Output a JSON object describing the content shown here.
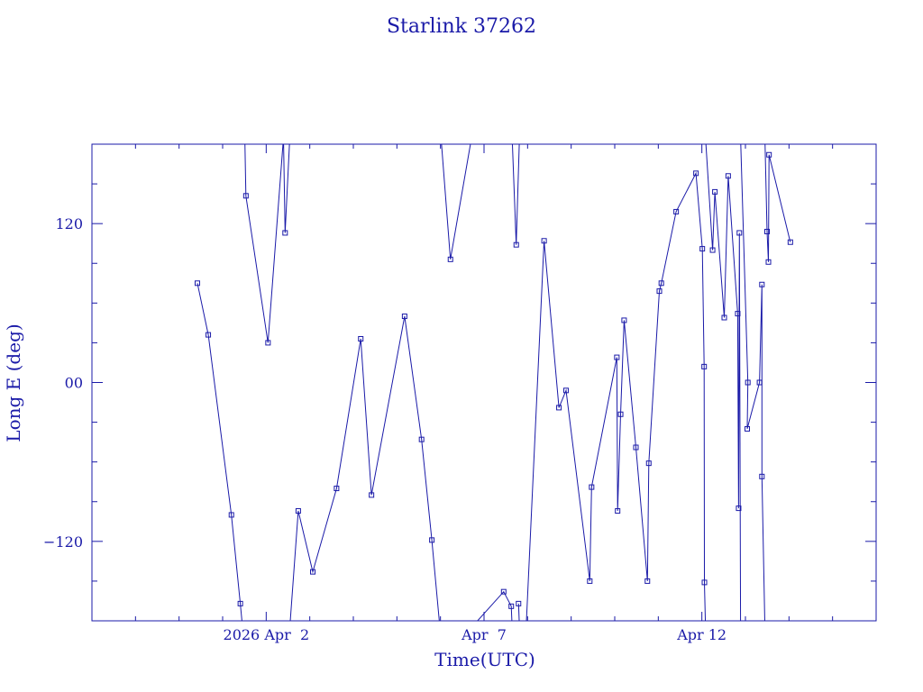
{
  "chart_data": {
    "type": "line",
    "title": "Starlink 37262",
    "xlabel": "Time(UTC)",
    "ylabel": "Long E (deg)",
    "xlim": [
      "2026-03-29T00:00",
      "2026-04-16T00:00"
    ],
    "ylim": [
      -180,
      180
    ],
    "x_ticks": [
      {
        "t": "2026-04-02T00:00",
        "label": "2026 Apr  2"
      },
      {
        "t": "2026-04-07T00:00",
        "label": "Apr  7"
      },
      {
        "t": "2026-04-12T00:00",
        "label": "Apr 12"
      }
    ],
    "y_ticks": [
      {
        "v": 120,
        "label": "120"
      },
      {
        "v": 0,
        "label": "00"
      },
      {
        "v": -120,
        "label": "−120"
      }
    ],
    "grid": false,
    "marker": "square",
    "color": "#1a1aa8",
    "series": [
      {
        "name": "",
        "points": [
          {
            "t": "2026-03-31T10:05",
            "lon": 75
          },
          {
            "t": "2026-03-31T16:05",
            "lon": 36
          },
          {
            "t": "2026-04-01T04:50",
            "lon": -100
          },
          {
            "t": "2026-04-01T09:45",
            "lon": -167
          },
          {
            "t": "2026-04-01T12:00",
            "lon": -200
          },
          {
            "t": "2026-04-01T12:00",
            "lon": 200
          },
          {
            "t": "2026-04-01T12:50",
            "lon": 141
          },
          {
            "t": "2026-04-02T01:00",
            "lon": 30
          },
          {
            "t": "2026-04-02T09:30",
            "lon": 185
          },
          {
            "t": "2026-04-02T10:25",
            "lon": 113
          },
          {
            "t": "2026-04-02T13:00",
            "lon": 185
          },
          {
            "t": "2026-04-02T13:00",
            "lon": -185
          },
          {
            "t": "2026-04-02T17:40",
            "lon": -97
          },
          {
            "t": "2026-04-03T01:40",
            "lon": -143
          },
          {
            "t": "2026-04-03T14:45",
            "lon": -80
          },
          {
            "t": "2026-04-04T04:05",
            "lon": 33
          },
          {
            "t": "2026-04-04T10:00",
            "lon": -85
          },
          {
            "t": "2026-04-05T04:15",
            "lon": 50
          },
          {
            "t": "2026-04-05T13:35",
            "lon": -43
          },
          {
            "t": "2026-04-05T19:15",
            "lon": -119
          },
          {
            "t": "2026-04-06T00:00",
            "lon": -190
          },
          {
            "t": "2026-04-06T00:00",
            "lon": 190
          },
          {
            "t": "2026-04-06T05:30",
            "lon": 93
          },
          {
            "t": "2026-04-06T17:10",
            "lon": 185
          },
          {
            "t": "2026-04-06T17:10",
            "lon": -185
          },
          {
            "t": "2026-04-07T10:50",
            "lon": -158
          },
          {
            "t": "2026-04-07T15:00",
            "lon": -169
          },
          {
            "t": "2026-04-07T15:30",
            "lon": -185
          },
          {
            "t": "2026-04-07T15:30",
            "lon": 185
          },
          {
            "t": "2026-04-07T17:45",
            "lon": 104
          },
          {
            "t": "2026-04-07T19:30",
            "lon": 185
          },
          {
            "t": "2026-04-07T19:30",
            "lon": -185
          },
          {
            "t": "2026-04-07T19:00",
            "lon": -167
          },
          {
            "t": "2026-04-07T23:10",
            "lon": 185
          },
          {
            "t": "2026-04-07T23:10",
            "lon": -185
          },
          {
            "t": "2026-04-08T09:05",
            "lon": 107
          },
          {
            "t": "2026-04-08T17:15",
            "lon": -19
          },
          {
            "t": "2026-04-08T21:10",
            "lon": -6
          },
          {
            "t": "2026-04-09T10:15",
            "lon": -150
          },
          {
            "t": "2026-04-09T11:15",
            "lon": -79
          },
          {
            "t": "2026-04-10T01:10",
            "lon": 19
          },
          {
            "t": "2026-04-10T01:35",
            "lon": -97
          },
          {
            "t": "2026-04-10T03:15",
            "lon": -24
          },
          {
            "t": "2026-04-10T05:10",
            "lon": 47
          },
          {
            "t": "2026-04-10T11:40",
            "lon": -49
          },
          {
            "t": "2026-04-10T18:00",
            "lon": -150
          },
          {
            "t": "2026-04-10T18:45",
            "lon": -61
          },
          {
            "t": "2026-04-11T00:35",
            "lon": 69
          },
          {
            "t": "2026-04-11T01:40",
            "lon": 75
          },
          {
            "t": "2026-04-11T09:50",
            "lon": 129
          },
          {
            "t": "2026-04-11T20:45",
            "lon": 158
          },
          {
            "t": "2026-04-12T00:15",
            "lon": 101
          },
          {
            "t": "2026-04-12T01:15",
            "lon": 12
          },
          {
            "t": "2026-04-12T01:25",
            "lon": -151
          },
          {
            "t": "2026-04-12T02:00",
            "lon": -185
          },
          {
            "t": "2026-04-12T02:00",
            "lon": 185
          },
          {
            "t": "2026-04-12T05:55",
            "lon": 100
          },
          {
            "t": "2026-04-12T07:10",
            "lon": 144
          },
          {
            "t": "2026-04-12T12:20",
            "lon": 49
          },
          {
            "t": "2026-04-12T14:30",
            "lon": 156
          },
          {
            "t": "2026-04-12T19:45",
            "lon": 52
          },
          {
            "t": "2026-04-12T20:15",
            "lon": -95
          },
          {
            "t": "2026-04-12T20:40",
            "lon": 113
          },
          {
            "t": "2026-04-12T21:20",
            "lon": -185
          },
          {
            "t": "2026-04-12T21:20",
            "lon": 185
          },
          {
            "t": "2026-04-13T01:20",
            "lon": 0
          },
          {
            "t": "2026-04-13T01:00",
            "lon": -35
          },
          {
            "t": "2026-04-13T07:45",
            "lon": 0
          },
          {
            "t": "2026-04-13T09:05",
            "lon": 74
          },
          {
            "t": "2026-04-13T09:05",
            "lon": -71
          },
          {
            "t": "2026-04-13T10:45",
            "lon": -185
          },
          {
            "t": "2026-04-13T10:45",
            "lon": 185
          },
          {
            "t": "2026-04-13T11:55",
            "lon": 114
          },
          {
            "t": "2026-04-13T12:40",
            "lon": 91
          },
          {
            "t": "2026-04-13T13:00",
            "lon": 172
          },
          {
            "t": "2026-04-14T00:45",
            "lon": 106
          }
        ]
      }
    ]
  }
}
